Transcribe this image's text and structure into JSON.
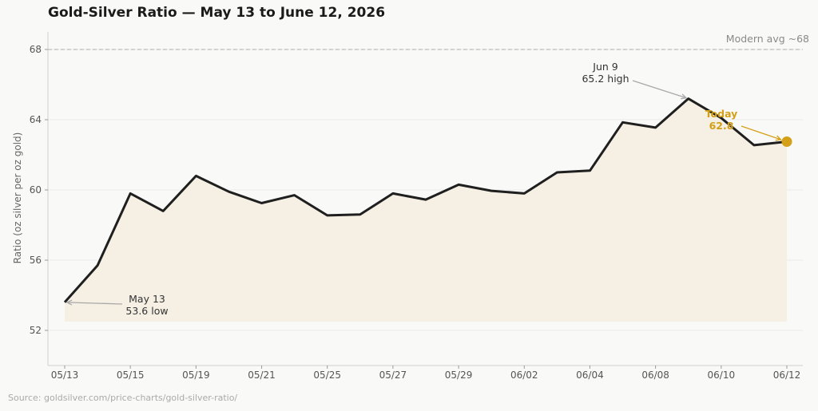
{
  "title": "Gold-Silver Ratio — May 13 to June 12, 2026",
  "source": "Source: goldsilver.com/price-charts/gold-silver-ratio/",
  "colors": {
    "line": "#1f1f1f",
    "fill": "#f5f0e3",
    "accent": "#d4a017",
    "grid": "#ececec",
    "reference": "#bdbdbd",
    "annotation_arrow": "#a8a8a8"
  },
  "chart_data": {
    "type": "line",
    "title": "Gold-Silver Ratio — May 13 to June 12, 2026",
    "ylabel": "Ratio (oz silver per oz gold)",
    "xlabel": "",
    "ylim": [
      50,
      69
    ],
    "yticks": [
      52,
      56,
      60,
      64,
      68
    ],
    "xticks": [
      "05/13",
      "05/15",
      "05/19",
      "05/21",
      "05/25",
      "05/27",
      "05/29",
      "06/02",
      "06/04",
      "06/08",
      "06/10",
      "06/12"
    ],
    "grid": "horizontal",
    "area_fill": true,
    "values": [
      53.6,
      55.7,
      59.8,
      58.8,
      60.8,
      59.9,
      59.25,
      59.7,
      58.55,
      58.6,
      59.8,
      59.45,
      60.3,
      59.95,
      59.8,
      61.0,
      61.1,
      63.85,
      63.55,
      65.2,
      64.1,
      62.55,
      62.75
    ],
    "reference_line": {
      "value": 68,
      "label": "Modern avg ~68"
    },
    "annotations": [
      {
        "point": 0,
        "lines": [
          "May 13",
          "53.6 low"
        ]
      },
      {
        "point": 19,
        "lines": [
          "Jun 9",
          "65.2 high"
        ]
      },
      {
        "point": 22,
        "lines": [
          "Today",
          "62.8"
        ],
        "accent": true
      }
    ]
  }
}
